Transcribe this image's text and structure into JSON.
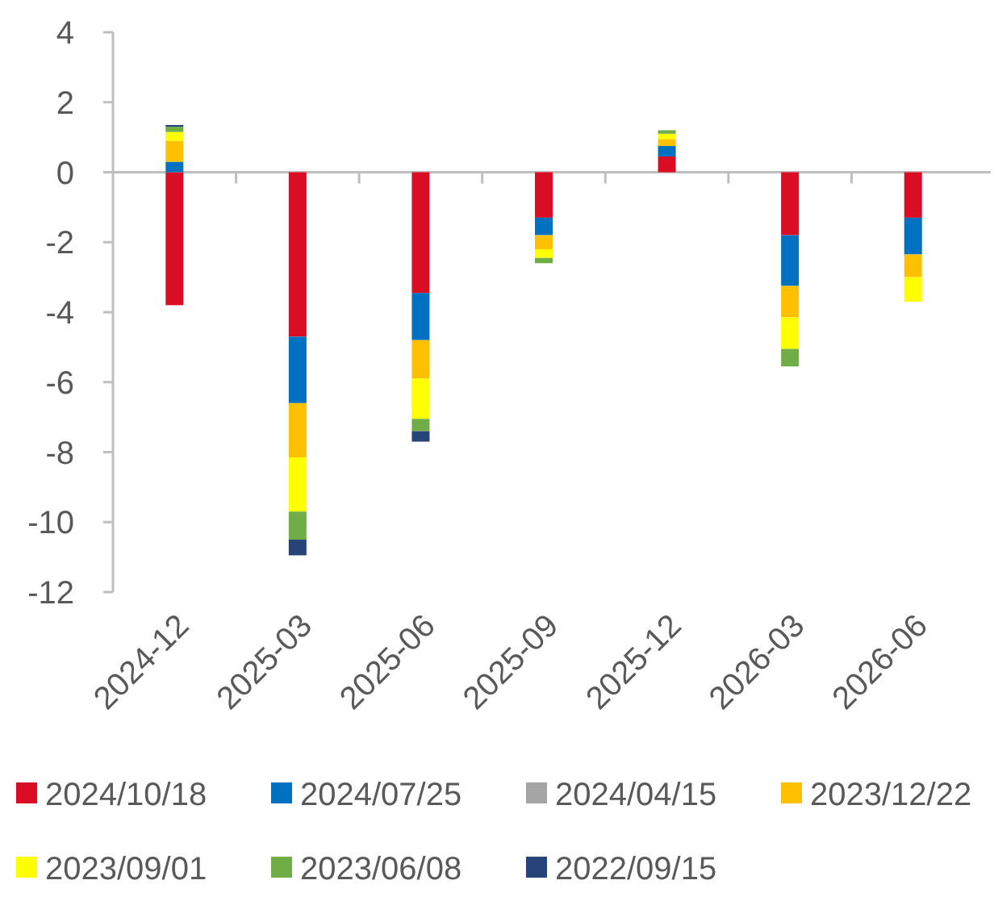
{
  "chart_data": {
    "type": "bar",
    "stacked": true,
    "categories": [
      "2024-12",
      "2025-03",
      "2025-06",
      "2025-09",
      "2025-12",
      "2026-03",
      "2026-06"
    ],
    "series": [
      {
        "name": "2024/10/18",
        "color": "#d90e25",
        "values": [
          -3.8,
          -4.7,
          -3.45,
          -1.3,
          0.45,
          -1.8,
          -1.3
        ]
      },
      {
        "name": "2024/07/25",
        "color": "#0070c0",
        "values": [
          0.3,
          -1.9,
          -1.35,
          -0.5,
          0.3,
          -1.45,
          -1.05
        ]
      },
      {
        "name": "2024/04/15",
        "color": "#a5a5a5",
        "values": [
          0,
          0,
          0,
          0,
          0,
          0,
          0
        ]
      },
      {
        "name": "2023/12/22",
        "color": "#ffc000",
        "values": [
          0.6,
          -1.55,
          -1.1,
          -0.4,
          0.2,
          -0.9,
          -0.65
        ]
      },
      {
        "name": "2023/09/01",
        "color": "#ffff00",
        "values": [
          0.25,
          -1.55,
          -1.15,
          -0.25,
          0.15,
          -0.9,
          -0.7
        ]
      },
      {
        "name": "2023/06/08",
        "color": "#70ad47",
        "values": [
          0.15,
          -0.8,
          -0.35,
          -0.15,
          0.1,
          -0.5,
          0
        ]
      },
      {
        "name": "2022/09/15",
        "color": "#264478",
        "values": [
          0.05,
          -0.45,
          -0.3,
          0,
          0,
          0,
          0
        ]
      }
    ],
    "ylim": [
      -12,
      4
    ],
    "yticks": [
      -12,
      -10,
      -8,
      -6,
      -4,
      -2,
      0,
      2,
      4
    ],
    "legend": "bottom"
  }
}
